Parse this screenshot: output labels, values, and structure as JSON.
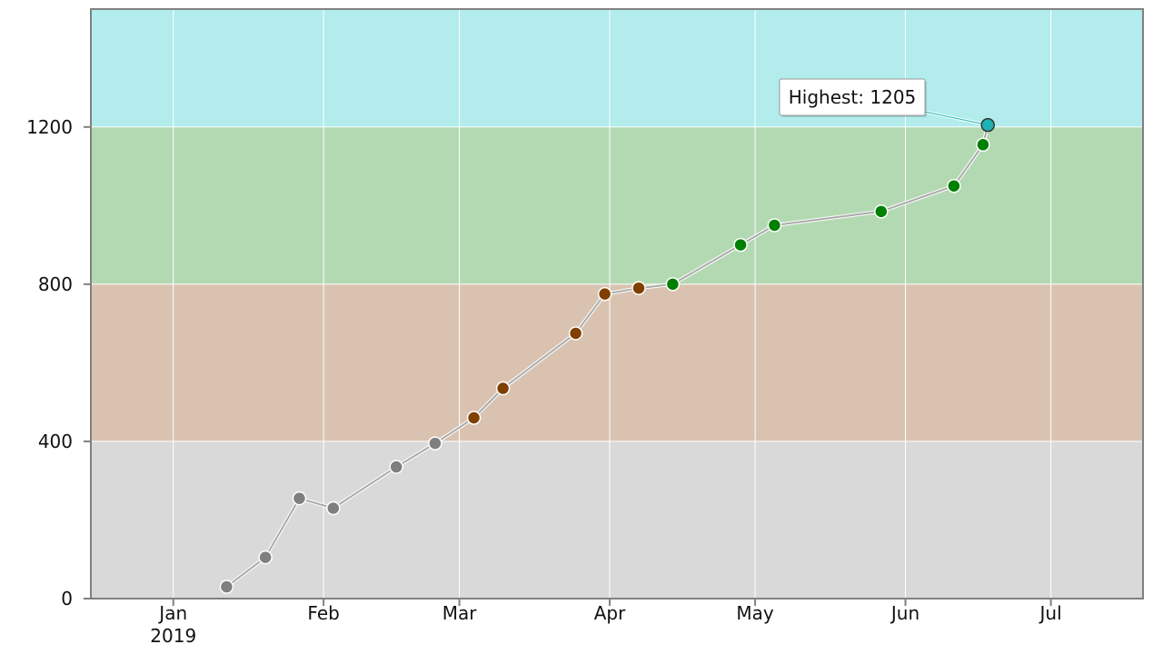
{
  "chart_data": {
    "type": "line",
    "title": "",
    "xlabel": "",
    "ylabel": "",
    "ylim": [
      0,
      1500
    ],
    "xlim": [
      "2018-12-15",
      "2019-07-20"
    ],
    "grid": true,
    "legend": "none",
    "y_ticks": [
      {
        "value": 0,
        "label": "0"
      },
      {
        "value": 400,
        "label": "400"
      },
      {
        "value": 800,
        "label": "800"
      },
      {
        "value": 1200,
        "label": "1200"
      }
    ],
    "x_ticks": [
      {
        "date": "2019-01-01",
        "label": "Jan",
        "sublabel": "2019"
      },
      {
        "date": "2019-02-01",
        "label": "Feb",
        "sublabel": ""
      },
      {
        "date": "2019-03-01",
        "label": "Mar",
        "sublabel": ""
      },
      {
        "date": "2019-04-01",
        "label": "Apr",
        "sublabel": ""
      },
      {
        "date": "2019-05-01",
        "label": "May",
        "sublabel": ""
      },
      {
        "date": "2019-06-01",
        "label": "Jun",
        "sublabel": ""
      },
      {
        "date": "2019-07-01",
        "label": "Jul",
        "sublabel": ""
      }
    ],
    "bands": [
      {
        "from": 0,
        "to": 400,
        "color": "#d9d9d9"
      },
      {
        "from": 400,
        "to": 800,
        "color": "#d9c3b0"
      },
      {
        "from": 800,
        "to": 1200,
        "color": "#b3d9b3"
      },
      {
        "from": 1200,
        "to": 1500,
        "color": "#b2ecec"
      }
    ],
    "line_color": "#aaaaaa",
    "series": [
      {
        "points": [
          {
            "x": "2019-01-12",
            "y": 30,
            "color": "#7f7f7f"
          },
          {
            "x": "2019-01-20",
            "y": 105,
            "color": "#7f7f7f"
          },
          {
            "x": "2019-01-27",
            "y": 255,
            "color": "#7f7f7f"
          },
          {
            "x": "2019-02-03",
            "y": 230,
            "color": "#7f7f7f"
          },
          {
            "x": "2019-02-16",
            "y": 335,
            "color": "#7f7f7f"
          },
          {
            "x": "2019-02-24",
            "y": 395,
            "color": "#7f7f7f"
          },
          {
            "x": "2019-03-04",
            "y": 460,
            "color": "#804000"
          },
          {
            "x": "2019-03-10",
            "y": 535,
            "color": "#804000"
          },
          {
            "x": "2019-03-25",
            "y": 675,
            "color": "#804000"
          },
          {
            "x": "2019-03-31",
            "y": 775,
            "color": "#804000"
          },
          {
            "x": "2019-04-07",
            "y": 790,
            "color": "#804000"
          },
          {
            "x": "2019-04-14",
            "y": 800,
            "color": "#008000"
          },
          {
            "x": "2019-04-28",
            "y": 900,
            "color": "#008000"
          },
          {
            "x": "2019-05-05",
            "y": 950,
            "color": "#008000"
          },
          {
            "x": "2019-05-27",
            "y": 985,
            "color": "#008000"
          },
          {
            "x": "2019-06-11",
            "y": 1050,
            "color": "#008000"
          },
          {
            "x": "2019-06-17",
            "y": 1155,
            "color": "#008000"
          },
          {
            "x": "2019-06-18",
            "y": 1205,
            "color": "#20b2b2"
          }
        ]
      }
    ],
    "annotation": {
      "point_index": 17,
      "text": "Highest: 1205"
    }
  }
}
